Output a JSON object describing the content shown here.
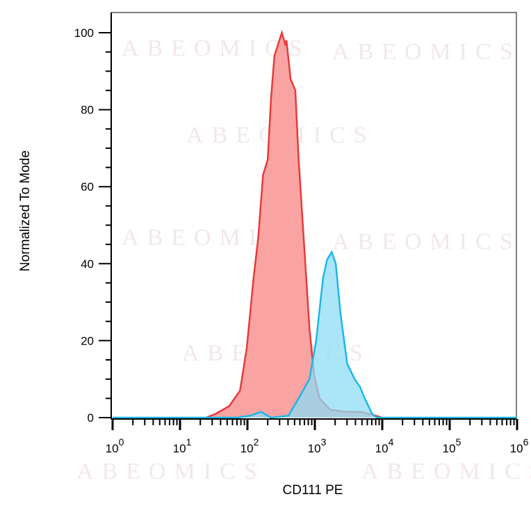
{
  "chart_data": {
    "type": "area",
    "title": "",
    "xlabel": "CD111 PE",
    "ylabel": "Normalized To Mode",
    "xscale": "log",
    "xlim": [
      1,
      1000000
    ],
    "ylim": [
      0,
      100
    ],
    "x_ticks": [
      {
        "base": "10",
        "exp": "0"
      },
      {
        "base": "10",
        "exp": "1"
      },
      {
        "base": "10",
        "exp": "2"
      },
      {
        "base": "10",
        "exp": "3"
      },
      {
        "base": "10",
        "exp": "4"
      },
      {
        "base": "10",
        "exp": "5"
      },
      {
        "base": "10",
        "exp": "6"
      }
    ],
    "y_ticks": [
      "0",
      "20",
      "40",
      "60",
      "80",
      "100"
    ],
    "grid": false,
    "legend": "none",
    "series": [
      {
        "color": "#e83a3a",
        "fill": "#f9a3a3",
        "x": [
          24.5,
          33.9,
          53.7,
          77.6,
          97.7,
          123,
          145,
          170,
          200,
          224,
          251,
          324,
          363,
          380,
          437,
          513,
          575,
          692,
          832,
          977,
          1175,
          1698,
          3020,
          4898,
          7943,
          10000
        ],
        "y": [
          0,
          1,
          3,
          7,
          18,
          36,
          47,
          63,
          67,
          83,
          94,
          100,
          97,
          98,
          88,
          85,
          67,
          45,
          23,
          11,
          5,
          2,
          1.5,
          1.5,
          0.5,
          0
        ]
      },
      {
        "color": "#1ab8e8",
        "fill": "#8fdcf5",
        "x": [
          1,
          69.2,
          110,
          158,
          224,
          407,
          575,
          832,
          1047,
          1318,
          1514,
          1778,
          2042,
          2399,
          3020,
          3890,
          4677,
          5495,
          7079,
          8318,
          1000000
        ],
        "y": [
          0,
          0,
          0.5,
          1.5,
          0,
          0.5,
          5,
          10,
          20,
          36,
          41,
          43,
          40,
          27,
          14,
          10,
          8,
          5,
          1,
          0,
          0
        ]
      }
    ]
  },
  "watermark": "ABEOMICS"
}
